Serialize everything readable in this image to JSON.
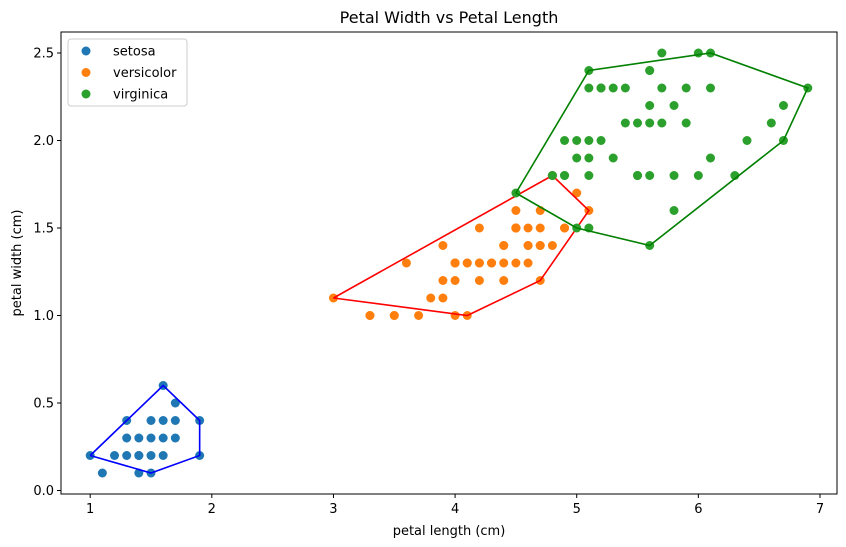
{
  "chart_data": {
    "type": "scatter",
    "title": "Petal Width vs Petal Length",
    "xlabel": "petal length (cm)",
    "ylabel": "petal width (cm)",
    "xlim": [
      0.76,
      7.14
    ],
    "ylim": [
      -0.02,
      2.62
    ],
    "xticks": [
      1,
      2,
      3,
      4,
      5,
      6,
      7
    ],
    "yticks": [
      0.0,
      0.5,
      1.0,
      1.5,
      2.0,
      2.5
    ],
    "ytick_labels": [
      "0.0",
      "0.5",
      "1.0",
      "1.5",
      "2.0",
      "2.5"
    ],
    "grid": false,
    "legend_position": "top-left",
    "series": [
      {
        "name": "setosa",
        "color": "#1f77b4",
        "hull_color": "#0000ff",
        "points": [
          [
            1.4,
            0.2
          ],
          [
            1.3,
            0.2
          ],
          [
            1.5,
            0.2
          ],
          [
            1.7,
            0.4
          ],
          [
            1.4,
            0.3
          ],
          [
            1.5,
            0.1
          ],
          [
            1.6,
            0.2
          ],
          [
            1.1,
            0.1
          ],
          [
            1.2,
            0.2
          ],
          [
            1.3,
            0.4
          ],
          [
            1.7,
            0.3
          ],
          [
            1.0,
            0.2
          ],
          [
            1.9,
            0.2
          ],
          [
            1.6,
            0.4
          ],
          [
            1.9,
            0.4
          ],
          [
            1.6,
            0.6
          ],
          [
            1.4,
            0.1
          ],
          [
            1.3,
            0.3
          ],
          [
            1.5,
            0.4
          ],
          [
            1.6,
            0.3
          ],
          [
            1.7,
            0.5
          ],
          [
            1.5,
            0.3
          ],
          [
            1.4,
            0.2
          ]
        ],
        "hull": [
          [
            1.0,
            0.2
          ],
          [
            1.5,
            0.1
          ],
          [
            1.9,
            0.2
          ],
          [
            1.9,
            0.4
          ],
          [
            1.6,
            0.6
          ],
          [
            1.3,
            0.4
          ]
        ]
      },
      {
        "name": "versicolor",
        "color": "#ff7f0e",
        "hull_color": "#ff0000",
        "points": [
          [
            4.7,
            1.4
          ],
          [
            4.5,
            1.5
          ],
          [
            4.9,
            1.5
          ],
          [
            4.0,
            1.3
          ],
          [
            4.6,
            1.5
          ],
          [
            4.5,
            1.3
          ],
          [
            4.7,
            1.6
          ],
          [
            3.3,
            1.0
          ],
          [
            4.6,
            1.3
          ],
          [
            3.9,
            1.4
          ],
          [
            3.5,
            1.0
          ],
          [
            4.2,
            1.5
          ],
          [
            4.0,
            1.0
          ],
          [
            4.7,
            1.4
          ],
          [
            3.6,
            1.3
          ],
          [
            4.4,
            1.4
          ],
          [
            4.5,
            1.5
          ],
          [
            4.1,
            1.0
          ],
          [
            4.5,
            1.5
          ],
          [
            3.9,
            1.1
          ],
          [
            4.8,
            1.8
          ],
          [
            4.0,
            1.3
          ],
          [
            4.9,
            1.5
          ],
          [
            4.7,
            1.2
          ],
          [
            4.3,
            1.3
          ],
          [
            4.4,
            1.4
          ],
          [
            4.8,
            1.4
          ],
          [
            5.0,
            1.7
          ],
          [
            4.5,
            1.5
          ],
          [
            3.5,
            1.0
          ],
          [
            3.8,
            1.1
          ],
          [
            3.7,
            1.0
          ],
          [
            3.9,
            1.2
          ],
          [
            5.1,
            1.6
          ],
          [
            4.5,
            1.5
          ],
          [
            4.5,
            1.6
          ],
          [
            4.7,
            1.5
          ],
          [
            4.4,
            1.3
          ],
          [
            4.1,
            1.3
          ],
          [
            4.0,
            1.3
          ],
          [
            4.4,
            1.2
          ],
          [
            4.6,
            1.4
          ],
          [
            4.0,
            1.2
          ],
          [
            3.3,
            1.0
          ],
          [
            4.2,
            1.3
          ],
          [
            4.2,
            1.2
          ],
          [
            4.3,
            1.3
          ],
          [
            3.0,
            1.1
          ],
          [
            4.1,
            1.3
          ],
          [
            4.2,
            1.3
          ],
          [
            4.6,
            1.4
          ]
        ],
        "hull": [
          [
            3.0,
            1.1
          ],
          [
            4.1,
            1.0
          ],
          [
            4.7,
            1.2
          ],
          [
            5.1,
            1.6
          ],
          [
            4.8,
            1.8
          ]
        ]
      },
      {
        "name": "virginica",
        "color": "#2ca02c",
        "hull_color": "#008000",
        "points": [
          [
            6.0,
            2.5
          ],
          [
            5.1,
            1.9
          ],
          [
            5.9,
            2.1
          ],
          [
            5.6,
            1.8
          ],
          [
            5.8,
            2.2
          ],
          [
            6.6,
            2.1
          ],
          [
            4.5,
            1.7
          ],
          [
            6.3,
            1.8
          ],
          [
            5.8,
            1.8
          ],
          [
            6.1,
            2.5
          ],
          [
            5.1,
            2.0
          ],
          [
            5.3,
            1.9
          ],
          [
            5.5,
            2.1
          ],
          [
            5.0,
            2.0
          ],
          [
            5.1,
            2.4
          ],
          [
            5.3,
            2.3
          ],
          [
            5.5,
            1.8
          ],
          [
            6.7,
            2.2
          ],
          [
            6.9,
            2.3
          ],
          [
            5.0,
            1.5
          ],
          [
            5.7,
            2.3
          ],
          [
            4.9,
            2.0
          ],
          [
            6.7,
            2.0
          ],
          [
            4.9,
            1.8
          ],
          [
            5.7,
            2.1
          ],
          [
            6.0,
            1.8
          ],
          [
            4.8,
            1.8
          ],
          [
            4.9,
            1.8
          ],
          [
            5.6,
            2.1
          ],
          [
            5.8,
            1.6
          ],
          [
            6.1,
            1.9
          ],
          [
            6.4,
            2.0
          ],
          [
            5.6,
            2.2
          ],
          [
            5.1,
            1.5
          ],
          [
            5.6,
            1.4
          ],
          [
            6.1,
            2.3
          ],
          [
            5.6,
            2.4
          ],
          [
            5.5,
            1.8
          ],
          [
            4.8,
            1.8
          ],
          [
            5.4,
            2.1
          ],
          [
            5.6,
            2.4
          ],
          [
            5.1,
            2.3
          ],
          [
            5.9,
            2.3
          ],
          [
            5.7,
            2.5
          ],
          [
            5.2,
            2.3
          ],
          [
            5.0,
            1.9
          ],
          [
            5.2,
            2.0
          ],
          [
            5.4,
            2.3
          ],
          [
            5.1,
            1.8
          ],
          [
            5.2,
            2.3
          ]
        ],
        "hull": [
          [
            4.5,
            1.7
          ],
          [
            5.0,
            1.5
          ],
          [
            5.6,
            1.4
          ],
          [
            6.7,
            2.0
          ],
          [
            6.9,
            2.3
          ],
          [
            6.1,
            2.5
          ],
          [
            5.1,
            2.4
          ]
        ]
      }
    ]
  }
}
